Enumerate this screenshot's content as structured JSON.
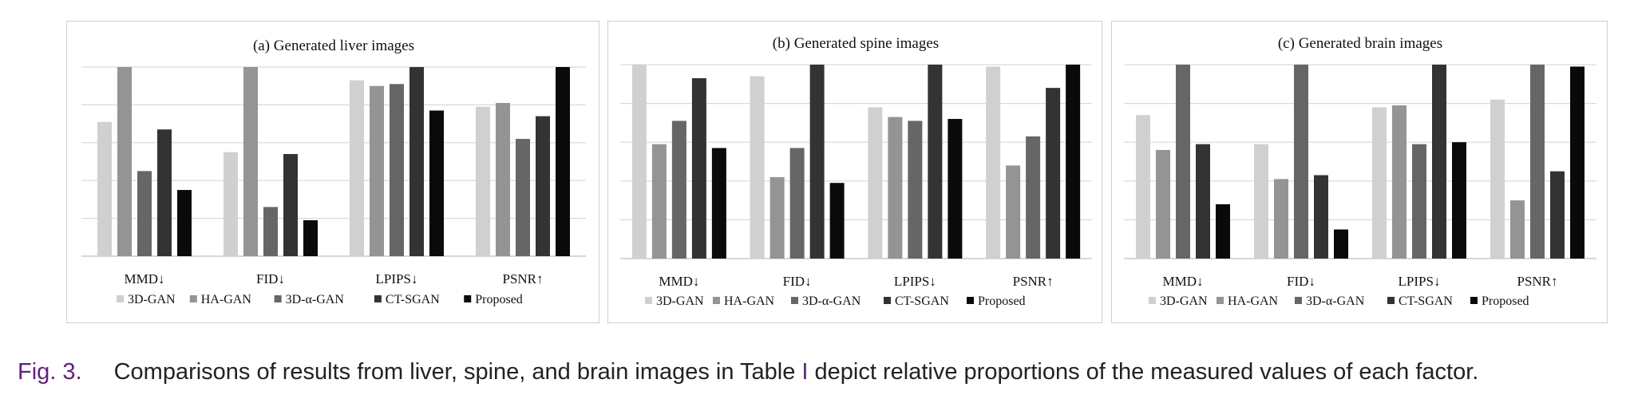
{
  "figure": {
    "caption": {
      "label": "Fig. 3.",
      "text_before": "Comparisons of results from liver, spine, and brain images in Table",
      "table_ref": "I",
      "text_after": "depict relative proportions of the measured values of each factor."
    },
    "colors": {
      "3D-GAN": "#d0d0d0",
      "HA-GAN": "#949494",
      "3D-α-GAN": "#666666",
      "CT-SGAN": "#333333",
      "Proposed": "#0a0a0a",
      "gridline": "#d9d9d9",
      "panel_border": "#cfcfcf",
      "caption_accent": "#6a1b8a"
    }
  },
  "chart_data": [
    {
      "type": "bar",
      "title": "(a) Generated liver images",
      "categories": [
        "MMD↓",
        "FID↓",
        "LPIPS↓",
        "PSNR↑"
      ],
      "ylim": [
        0,
        1
      ],
      "grid": true,
      "legend_position": "bottom",
      "series": [
        {
          "name": "3D-GAN",
          "values": [
            0.71,
            0.55,
            0.93,
            0.79
          ]
        },
        {
          "name": "HA-GAN",
          "values": [
            1.0,
            1.0,
            0.9,
            0.81
          ]
        },
        {
          "name": "3D-α-GAN",
          "values": [
            0.45,
            0.26,
            0.91,
            0.62
          ]
        },
        {
          "name": "CT-SGAN",
          "values": [
            0.67,
            0.54,
            1.0,
            0.74
          ]
        },
        {
          "name": "Proposed",
          "values": [
            0.35,
            0.19,
            0.77,
            1.0
          ]
        }
      ]
    },
    {
      "type": "bar",
      "title": "(b) Generated spine images",
      "categories": [
        "MMD↓",
        "FID↓",
        "LPIPS↓",
        "PSNR↑"
      ],
      "ylim": [
        0,
        1
      ],
      "grid": true,
      "legend_position": "bottom",
      "series": [
        {
          "name": "3D-GAN",
          "values": [
            1.0,
            0.94,
            0.78,
            0.99
          ]
        },
        {
          "name": "HA-GAN",
          "values": [
            0.59,
            0.42,
            0.73,
            0.48
          ]
        },
        {
          "name": "3D-α-GAN",
          "values": [
            0.71,
            0.57,
            0.71,
            0.63
          ]
        },
        {
          "name": "CT-SGAN",
          "values": [
            0.93,
            1.0,
            1.0,
            0.88
          ]
        },
        {
          "name": "Proposed",
          "values": [
            0.57,
            0.39,
            0.72,
            1.0
          ]
        }
      ]
    },
    {
      "type": "bar",
      "title": "(c) Generated brain images",
      "categories": [
        "MMD↓",
        "FID↓",
        "LPIPS↓",
        "PSNR↑"
      ],
      "ylim": [
        0,
        1
      ],
      "grid": true,
      "legend_position": "bottom",
      "series": [
        {
          "name": "3D-GAN",
          "values": [
            0.74,
            0.59,
            0.78,
            0.82
          ]
        },
        {
          "name": "HA-GAN",
          "values": [
            0.56,
            0.41,
            0.79,
            0.3
          ]
        },
        {
          "name": "3D-α-GAN",
          "values": [
            1.0,
            1.0,
            0.59,
            1.0
          ]
        },
        {
          "name": "CT-SGAN",
          "values": [
            0.59,
            0.43,
            1.0,
            0.45
          ]
        },
        {
          "name": "Proposed",
          "values": [
            0.28,
            0.15,
            0.6,
            0.99
          ]
        }
      ]
    }
  ]
}
